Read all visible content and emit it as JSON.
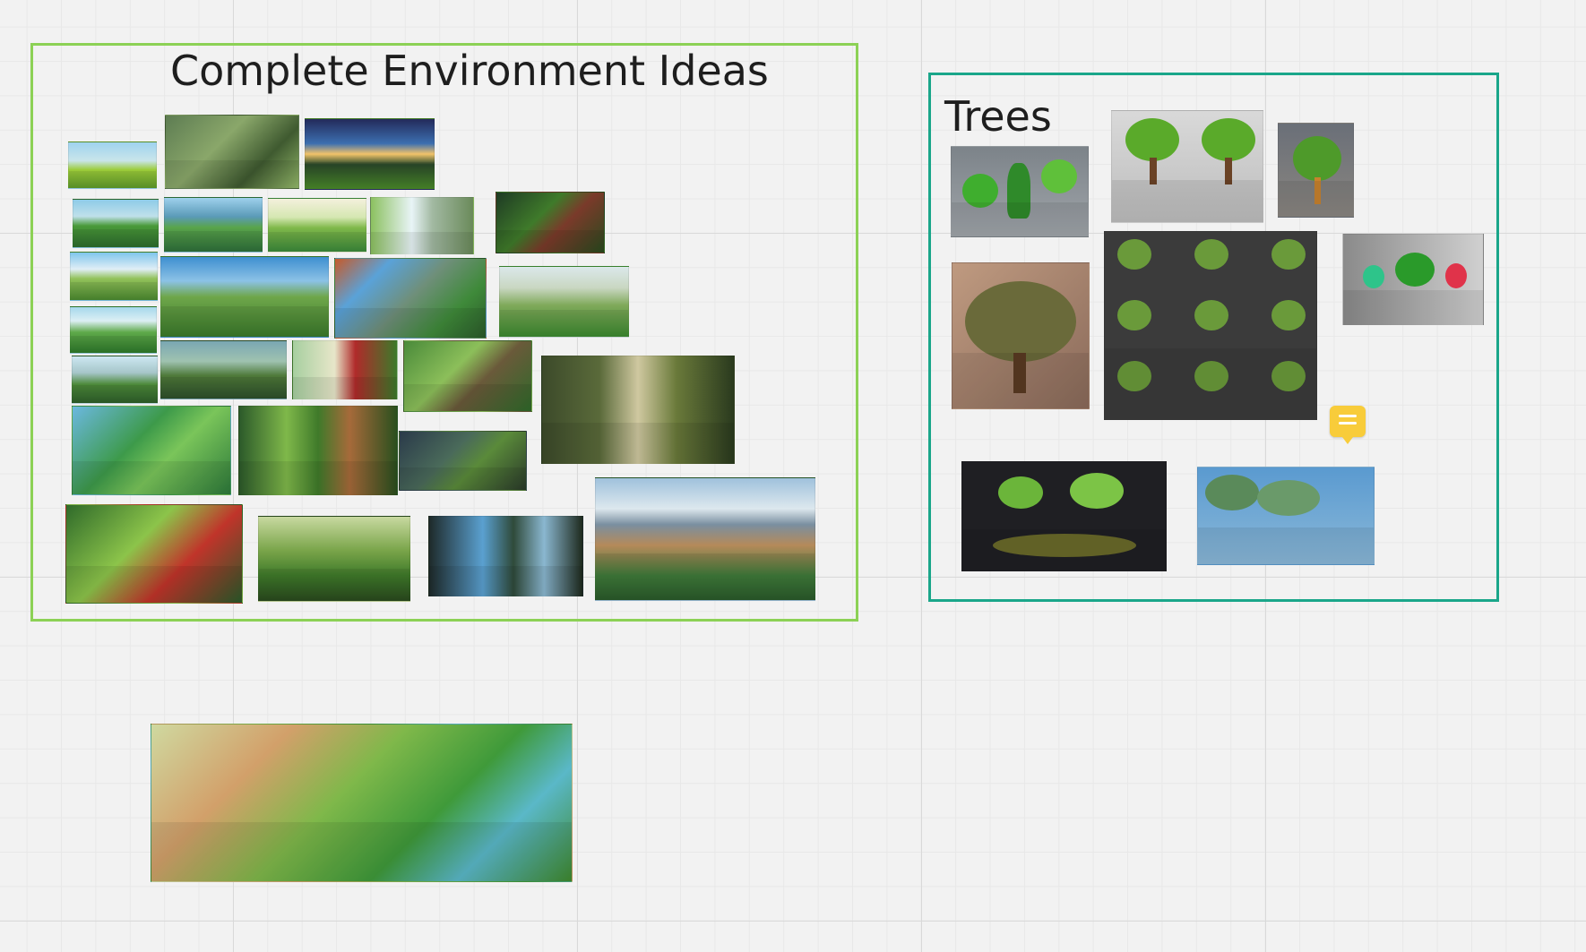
{
  "board": {
    "frames": [
      {
        "id": "environment",
        "title": "Complete Environment Ideas",
        "border_color": "#8cd155"
      },
      {
        "id": "trees",
        "title": "Trees",
        "border_color": "#1aa68a"
      }
    ],
    "comment": {
      "icon": "comment-icon",
      "color": "#f8cc3a"
    }
  }
}
